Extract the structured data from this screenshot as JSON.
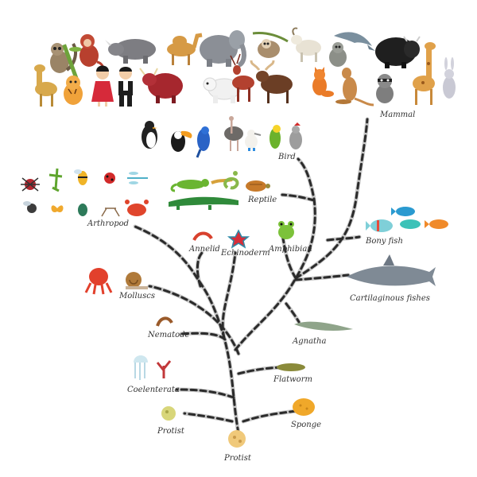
{
  "labels": {
    "mammal": "Mammal",
    "bird": "Bird",
    "reptile": "Reptile",
    "arthropod": "Arthropod",
    "bony_fish": "Bony fish",
    "annelid": "Annelid",
    "echinoderm": "Echinoderm",
    "amphibian": "Amphibian",
    "molluscs": "Molluscs",
    "cartilaginous_fishes": "Cartilaginous fishes",
    "nematode": "Nematode",
    "agnatha": "Agnatha",
    "flatworm": "Flatworm",
    "coelenterata": "Coelenterata",
    "protist_small": "Protist",
    "sponge": "Sponge",
    "protist_root": "Protist"
  },
  "colors": {
    "path_outline": "#bdbdbd",
    "path_dash": "#2b2b2b",
    "label_text": "#333333"
  }
}
